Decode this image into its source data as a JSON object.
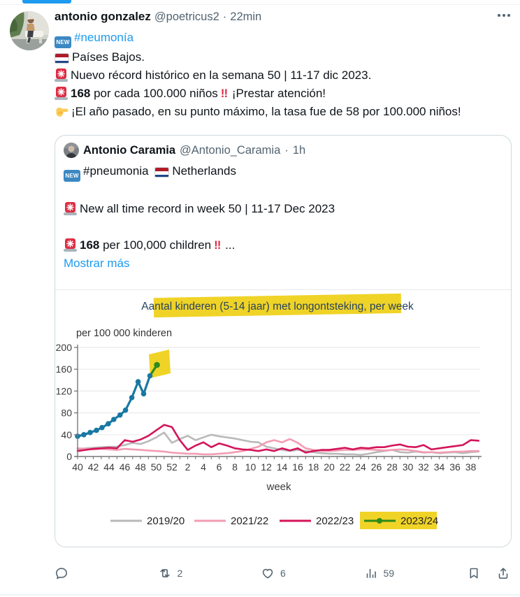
{
  "colors": {
    "link-blue": "#1d9bf0",
    "text-primary": "#0f1419",
    "text-secondary": "#536471",
    "card-border": "#cfd9de",
    "divider": "#eff3f4",
    "badge-blue": "#3b88c3",
    "siren-red": "#dd2e44",
    "flag-red": "#ae1c28",
    "flag-blue": "#21468b",
    "hand-yellow": "#fdcb58",
    "highlight-yellow": "#f0d327"
  },
  "main_tweet": {
    "display_name": "antonio gonzalez",
    "handle": "@poetricus2",
    "separator": "·",
    "time": "22min",
    "new_badge_text": "NEW",
    "hashtag": "#neumonía",
    "line_country": "Países Bajos.",
    "line_record": "Nuevo récord histórico en la semana 50 | 11-17 dic 2023.",
    "rate_bold": "168",
    "rate_rest": " por cada 100.000 niños",
    "rate_bang": "!!",
    "rate_tail": " ¡Prestar atención!",
    "line_lastyear": "¡El año pasado, en su punto máximo, la tasa fue de 58 por 100.000 niños!"
  },
  "quote_tweet": {
    "display_name": "Antonio Caramia",
    "handle": "@Antonio_Caramia",
    "separator": "·",
    "time": "1h",
    "new_badge_text": "NEW",
    "hashtag": "#pneumonia",
    "country": "Netherlands",
    "line_record": "New all time record in week 50 | 11-17 Dec 2023",
    "rate_bold": "168",
    "rate_rest": " per 100,000 children",
    "rate_bang": "!!",
    "rate_tail": " ...",
    "show_more": "Mostrar más"
  },
  "actions": {
    "retweet_count": "2",
    "like_count": "6",
    "view_count": "59"
  },
  "chart_data": {
    "type": "line",
    "title": "Aantal kinderen (5-14 jaar) met longontsteking, per week",
    "title_highlight": "#f0d327",
    "record_highlight": "#f0d327",
    "ylabel": "per 100 000 kinderen",
    "xlabel": "week",
    "ylim": [
      0,
      200
    ],
    "yticks": [
      0,
      40,
      80,
      120,
      160,
      200
    ],
    "grid": "horizontal",
    "legend_position": "bottom",
    "categories": [
      40,
      41,
      42,
      43,
      44,
      45,
      46,
      47,
      48,
      49,
      50,
      51,
      52,
      1,
      2,
      3,
      4,
      5,
      6,
      7,
      8,
      9,
      10,
      11,
      12,
      13,
      14,
      15,
      16,
      17,
      18,
      19,
      20,
      21,
      22,
      23,
      24,
      25,
      26,
      27,
      28,
      29,
      30,
      31,
      32,
      33,
      34,
      35,
      36,
      37,
      38,
      39
    ],
    "series": [
      {
        "name": "2019/20",
        "color": "#b9b9b9",
        "values": [
          13,
          15,
          16,
          17,
          18,
          18,
          21,
          25,
          23,
          28,
          35,
          44,
          25,
          32,
          38,
          30,
          35,
          40,
          37,
          35,
          33,
          30,
          27,
          26,
          18,
          15,
          12,
          10,
          12,
          10,
          8,
          6,
          5,
          5,
          4,
          4,
          3,
          5,
          8,
          10,
          12,
          8,
          7,
          9,
          7,
          8,
          6,
          7,
          8,
          6,
          8,
          9
        ]
      },
      {
        "name": "2021/22",
        "color": "#f29cb2",
        "values": [
          15,
          14,
          13,
          14,
          13,
          12,
          14,
          13,
          12,
          11,
          10,
          9,
          7,
          6,
          5,
          5,
          4,
          4,
          5,
          6,
          8,
          10,
          14,
          18,
          26,
          30,
          26,
          32,
          25,
          15,
          12,
          10,
          10,
          11,
          12,
          12,
          13,
          13,
          12,
          11,
          12,
          13,
          12,
          10,
          8,
          8,
          7,
          8,
          9,
          9,
          10,
          10
        ]
      },
      {
        "name": "2022/23",
        "color": "#d4145a",
        "values": [
          10,
          12,
          14,
          15,
          16,
          15,
          30,
          27,
          31,
          38,
          48,
          58,
          54,
          30,
          12,
          20,
          26,
          17,
          24,
          20,
          15,
          13,
          12,
          10,
          13,
          10,
          15,
          11,
          15,
          7,
          10,
          12,
          12,
          14,
          16,
          13,
          16,
          15,
          17,
          17,
          20,
          22,
          18,
          17,
          21,
          13,
          15,
          17,
          19,
          21,
          30,
          29
        ]
      },
      {
        "name": "2023/24",
        "color": "#1878a2",
        "record_color": "#2e8b1a",
        "marker": true,
        "record": {
          "week": 50,
          "value": 168
        },
        "x": [
          40,
          40.8,
          41.6,
          42.4,
          43.1,
          43.9,
          44.6,
          45.4,
          46.1,
          46.9,
          47.7,
          48.4,
          49.2,
          50.1
        ],
        "values": [
          37,
          40,
          44,
          48,
          53,
          60,
          68,
          76,
          85,
          108,
          137,
          115,
          148,
          168
        ]
      }
    ]
  }
}
